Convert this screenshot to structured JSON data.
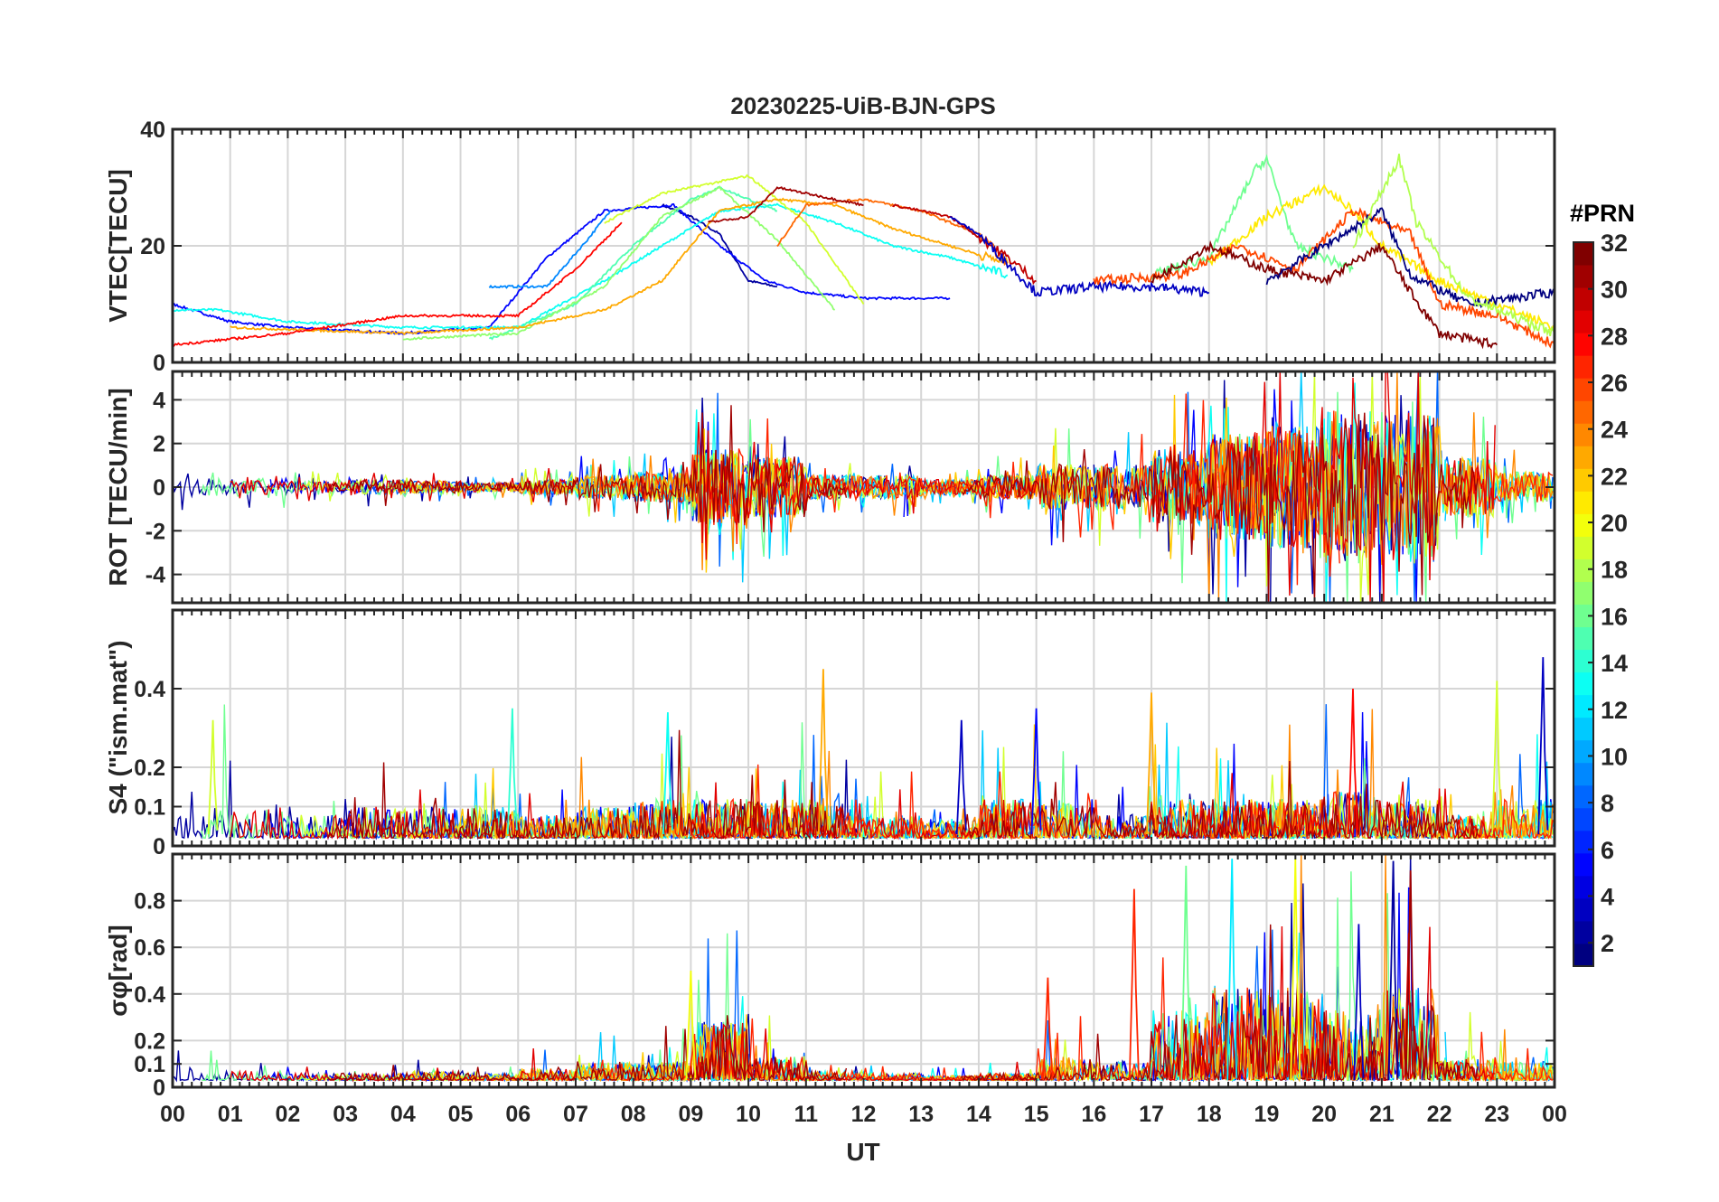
{
  "chart_data": {
    "type": "line",
    "title": "20230225-UiB-BJN-GPS",
    "xlabel": "UT",
    "xlim": [
      0,
      24
    ],
    "xticklabels": [
      "00",
      "01",
      "02",
      "03",
      "04",
      "05",
      "06",
      "07",
      "08",
      "09",
      "10",
      "11",
      "12",
      "13",
      "14",
      "15",
      "16",
      "17",
      "18",
      "19",
      "20",
      "21",
      "22",
      "23",
      "00"
    ],
    "grid": true,
    "colorbar": {
      "title": "#PRN",
      "colormap": "jet",
      "range": [
        1,
        32
      ],
      "ticks": [
        "2",
        "4",
        "6",
        "8",
        "10",
        "12",
        "14",
        "16",
        "18",
        "20",
        "22",
        "24",
        "26",
        "28",
        "30",
        "32"
      ],
      "placement": "right"
    },
    "panels": [
      {
        "name": "vtec",
        "ylabel": "VTEC[TECU]",
        "ylim": [
          0,
          40
        ],
        "yticks": [
          0,
          20,
          40
        ],
        "yticklabels": [
          "0",
          "20",
          "40"
        ],
        "series": [
          {
            "prn": 2,
            "points": [
              [
                8.5,
                27
              ],
              [
                9.0,
                25
              ],
              [
                9.5,
                22
              ],
              [
                10,
                14
              ],
              [
                10.5,
                13
              ]
            ]
          },
          {
            "prn": 5,
            "points": [
              [
                0,
                10
              ],
              [
                1,
                7
              ],
              [
                2,
                6
              ],
              [
                4,
                5
              ],
              [
                5.5,
                6
              ],
              [
                6.5,
                18
              ],
              [
                7.5,
                26
              ],
              [
                8.7,
                27
              ],
              [
                9.5,
                20
              ],
              [
                10.3,
                14
              ],
              [
                11,
                12
              ],
              [
                12,
                11
              ],
              [
                13.5,
                11
              ]
            ]
          },
          {
            "prn": 9,
            "points": [
              [
                5.5,
                13
              ],
              [
                6.5,
                13
              ],
              [
                7.2,
                21
              ],
              [
                7.6,
                26
              ]
            ]
          },
          {
            "prn": 13,
            "points": [
              [
                0,
                9
              ],
              [
                0.8,
                9
              ],
              [
                2,
                7
              ],
              [
                4,
                6
              ],
              [
                6,
                6
              ],
              [
                7.5,
                14
              ],
              [
                8.5,
                20
              ],
              [
                9.5,
                26
              ],
              [
                10.5,
                27
              ],
              [
                11.5,
                24
              ],
              [
                12.5,
                20
              ],
              [
                13.5,
                18
              ],
              [
                14.5,
                15
              ]
            ]
          },
          {
            "prn": 15,
            "points": [
              [
                5.5,
                4
              ],
              [
                7,
                10
              ],
              [
                8,
                20
              ],
              [
                9,
                28
              ],
              [
                9.5,
                30
              ],
              [
                10.5,
                26
              ]
            ]
          },
          {
            "prn": 17,
            "points": [
              [
                4,
                4
              ],
              [
                6,
                5
              ],
              [
                7.5,
                13
              ],
              [
                8.5,
                25
              ],
              [
                9.5,
                30
              ],
              [
                10.5,
                21
              ],
              [
                11.5,
                9
              ]
            ]
          },
          {
            "prn": 19,
            "points": [
              [
                7.5,
                24
              ],
              [
                8.5,
                29
              ],
              [
                10,
                32
              ],
              [
                11,
                24
              ],
              [
                12,
                10
              ]
            ]
          },
          {
            "prn": 23,
            "points": [
              [
                1,
                6
              ],
              [
                4,
                5
              ],
              [
                6,
                6
              ],
              [
                7.5,
                9
              ],
              [
                8.5,
                14
              ],
              [
                9.5,
                26
              ],
              [
                10.5,
                28
              ],
              [
                11.5,
                27
              ],
              [
                12.5,
                23
              ],
              [
                13.5,
                20
              ],
              [
                14.5,
                17
              ]
            ]
          },
          {
            "prn": 25,
            "points": [
              [
                10.5,
                20
              ],
              [
                11,
                27
              ],
              [
                12,
                28
              ],
              [
                13,
                26
              ],
              [
                14,
                22
              ],
              [
                14.5,
                17
              ]
            ]
          },
          {
            "prn": 28,
            "points": [
              [
                0,
                3
              ],
              [
                2,
                5
              ],
              [
                4,
                8
              ],
              [
                6,
                8
              ],
              [
                7,
                16
              ],
              [
                7.8,
                24
              ]
            ]
          },
          {
            "prn": 31,
            "points": [
              [
                9.3,
                24
              ],
              [
                10,
                25
              ],
              [
                10.5,
                30
              ],
              [
                11,
                29
              ],
              [
                12,
                27
              ]
            ]
          },
          {
            "prn": 30,
            "points": [
              [
                12.5,
                27
              ],
              [
                13.5,
                25
              ],
              [
                14.5,
                18
              ],
              [
                15,
                14
              ]
            ]
          },
          {
            "prn": 3,
            "points": [
              [
                13.5,
                25
              ],
              [
                14,
                22
              ],
              [
                14.5,
                17
              ],
              [
                15,
                12
              ],
              [
                16,
                13
              ],
              [
                17,
                13
              ],
              [
                18,
                12
              ]
            ]
          },
          {
            "prn": 16,
            "points": [
              [
                17,
                15
              ],
              [
                18,
                18
              ],
              [
                18.8,
                33
              ],
              [
                19,
                35
              ],
              [
                19.5,
                20
              ],
              [
                20.5,
                16
              ]
            ]
          },
          {
            "prn": 21,
            "points": [
              [
                18,
                17
              ],
              [
                19,
                25
              ],
              [
                20,
                30
              ],
              [
                20.5,
                26
              ],
              [
                21,
                20
              ],
              [
                22,
                14
              ],
              [
                23,
                10
              ],
              [
                24,
                6
              ]
            ]
          },
          {
            "prn": 26,
            "points": [
              [
                16,
                14
              ],
              [
                17.5,
                15
              ],
              [
                18.5,
                20
              ],
              [
                19.5,
                16
              ],
              [
                20.5,
                26
              ],
              [
                21.5,
                22
              ],
              [
                22,
                10
              ],
              [
                23,
                8
              ],
              [
                24,
                3
              ]
            ]
          },
          {
            "prn": 32,
            "points": [
              [
                17,
                14
              ],
              [
                18,
                20
              ],
              [
                19,
                16
              ],
              [
                20,
                14
              ],
              [
                21,
                20
              ],
              [
                21.5,
                12
              ],
              [
                22,
                5
              ],
              [
                23,
                3
              ]
            ]
          },
          {
            "prn": 1,
            "points": [
              [
                19,
                14
              ],
              [
                20,
                20
              ],
              [
                21,
                26
              ],
              [
                21.5,
                15
              ],
              [
                22.5,
                10
              ],
              [
                24,
                12
              ]
            ]
          },
          {
            "prn": 18,
            "points": [
              [
                20.5,
                20
              ],
              [
                21.3,
                35
              ],
              [
                21.6,
                24
              ],
              [
                22.5,
                11
              ],
              [
                24,
                5
              ]
            ]
          }
        ]
      },
      {
        "name": "rot",
        "ylabel": "ROT [TECU/min]",
        "ylim": [
          -5.3,
          5.3
        ],
        "yticks": [
          -4,
          -2,
          0,
          2,
          4
        ],
        "yticklabels": [
          "-4",
          "-2",
          "0",
          "2",
          "4"
        ],
        "hourly_amplitude": [
          0.6,
          0.6,
          0.4,
          0.5,
          0.4,
          0.3,
          0.5,
          0.8,
          1.0,
          2.5,
          2.0,
          0.8,
          0.8,
          0.5,
          0.8,
          1.5,
          1.5,
          2.5,
          3.5,
          4,
          5,
          5,
          2,
          1
        ]
      },
      {
        "name": "s4",
        "ylabel": "S4 (\"ism.mat\")",
        "ylim": [
          0,
          0.6
        ],
        "yticks": [
          0,
          0.1,
          0.2,
          0.4
        ],
        "yticklabels": [
          "0",
          "0.1",
          "0.2",
          "0.4"
        ],
        "hourly_level": [
          0.12,
          0.08,
          0.06,
          0.08,
          0.08,
          0.08,
          0.06,
          0.08,
          0.1,
          0.1,
          0.1,
          0.1,
          0.06,
          0.05,
          0.1,
          0.1,
          0.06,
          0.1,
          0.1,
          0.1,
          0.12,
          0.1,
          0.06,
          0.1
        ],
        "peaks": [
          [
            11.3,
            0.45,
            23
          ],
          [
            23.8,
            0.48,
            3
          ],
          [
            5.9,
            0.35,
            14
          ],
          [
            17,
            0.39,
            23
          ],
          [
            20.5,
            0.4,
            28
          ],
          [
            23,
            0.42,
            19
          ],
          [
            15,
            0.35,
            5
          ],
          [
            0.7,
            0.32,
            19
          ],
          [
            8.6,
            0.34,
            13
          ],
          [
            13.7,
            0.32,
            3
          ]
        ]
      },
      {
        "name": "sigma_phi",
        "ylabel": "σφ[rad]",
        "ylim": [
          0,
          1
        ],
        "yticks": [
          0,
          0.1,
          0.2,
          0.4,
          0.6,
          0.8
        ],
        "yticklabels": [
          "0",
          "0.1",
          "0.2",
          "0.4",
          "0.6",
          "0.8"
        ],
        "hourly_level": [
          0.05,
          0.04,
          0.03,
          0.03,
          0.04,
          0.03,
          0.05,
          0.08,
          0.08,
          0.25,
          0.1,
          0.04,
          0.03,
          0.02,
          0.03,
          0.1,
          0.08,
          0.3,
          0.4,
          0.4,
          0.3,
          0.4,
          0.1,
          0.08
        ],
        "peaks": [
          [
            21.2,
            0.97,
            2
          ],
          [
            19.5,
            0.98,
            20
          ],
          [
            18.4,
            0.98,
            12
          ],
          [
            17.6,
            0.95,
            16
          ],
          [
            16.7,
            0.85,
            27
          ],
          [
            21.5,
            0.93,
            31
          ],
          [
            9,
            0.5,
            20
          ],
          [
            15.2,
            0.47,
            27
          ],
          [
            20.6,
            0.7,
            3
          ]
        ]
      }
    ]
  }
}
